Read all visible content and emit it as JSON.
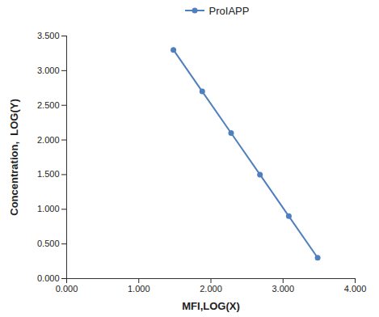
{
  "chart_data": {
    "type": "line",
    "x_label": "MFI,LOG(X)",
    "y_label": "Concentration,  LOG(Y)",
    "x": [
      1.48,
      1.88,
      2.28,
      2.68,
      3.08,
      3.48
    ],
    "series": [
      {
        "name": "ProIAPP",
        "color": "#4f7fbf",
        "marker": "circle",
        "line_style": "solid",
        "values": [
          3.3,
          2.7,
          2.1,
          1.5,
          0.9,
          0.3
        ]
      }
    ],
    "xlim": [
      0,
      4
    ],
    "xticks": [
      {
        "value": 0,
        "label": "0.000"
      },
      {
        "value": 1,
        "label": "1.000"
      },
      {
        "value": 2,
        "label": "2.000"
      },
      {
        "value": 3,
        "label": "3.000"
      },
      {
        "value": 4,
        "label": "4.000"
      }
    ],
    "ylim": [
      0,
      3.5
    ],
    "yticks": [
      {
        "value": 0,
        "label": "0.000"
      },
      {
        "value": 0.5,
        "label": "0.500"
      },
      {
        "value": 1,
        "label": "1.000"
      },
      {
        "value": 1.5,
        "label": "1.500"
      },
      {
        "value": 2,
        "label": "2.000"
      },
      {
        "value": 2.5,
        "label": "2.500"
      },
      {
        "value": 3,
        "label": "3.000"
      },
      {
        "value": 3.5,
        "label": "3.500"
      }
    ],
    "grid": false,
    "legend": "top"
  }
}
